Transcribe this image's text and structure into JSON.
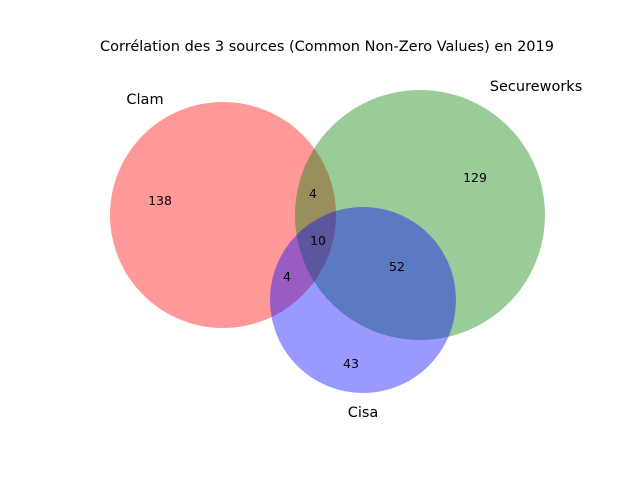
{
  "chart_data": {
    "type": "venn3",
    "title": "Corrélation des 3 sources (Common Non-Zero Values) en 2019",
    "sets": [
      {
        "key": "A",
        "name": "Clam",
        "color": "#ff0000"
      },
      {
        "key": "B",
        "name": "Secureworks",
        "color": "#008000"
      },
      {
        "key": "C",
        "name": "Cisa",
        "color": "#0000ff"
      }
    ],
    "regions": [
      {
        "sets": [
          "A"
        ],
        "value": 138
      },
      {
        "sets": [
          "B"
        ],
        "value": 129
      },
      {
        "sets": [
          "C"
        ],
        "value": 43
      },
      {
        "sets": [
          "A",
          "B"
        ],
        "value": 4
      },
      {
        "sets": [
          "A",
          "C"
        ],
        "value": 4
      },
      {
        "sets": [
          "B",
          "C"
        ],
        "value": 52
      },
      {
        "sets": [
          "A",
          "B",
          "C"
        ],
        "value": 10
      }
    ]
  }
}
